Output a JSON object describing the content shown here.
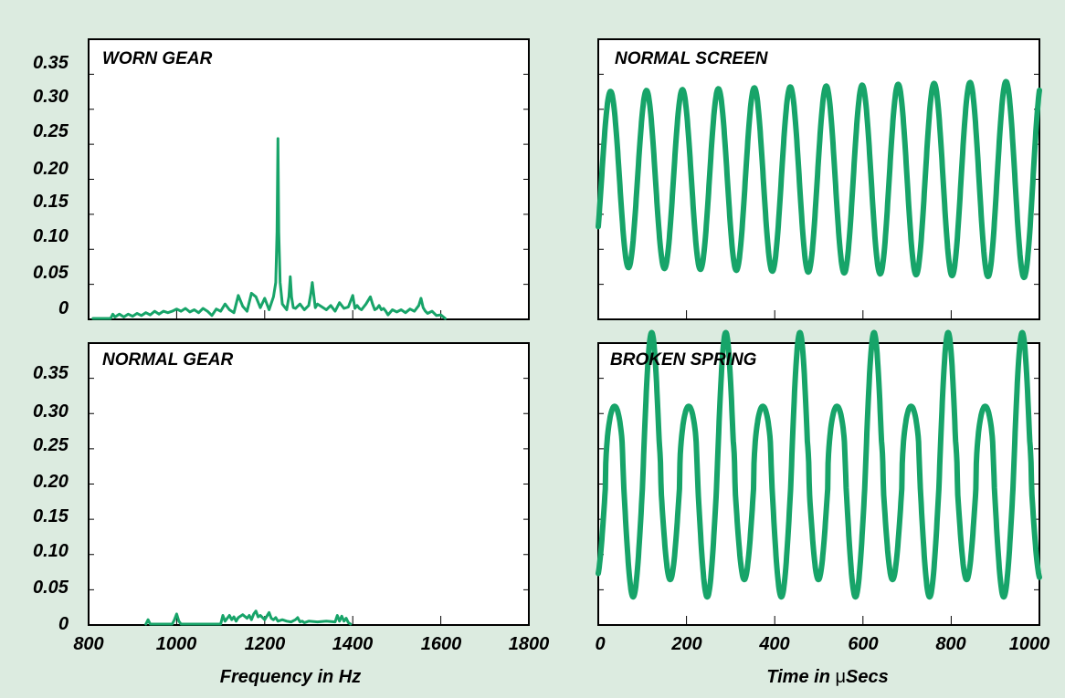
{
  "colors": {
    "background": "#dcebe0",
    "panel": "#ffffff",
    "trace": "#17a469",
    "frame": "#000000"
  },
  "y_tick_labels": [
    "0.35",
    "0.30",
    "0.25",
    "0.20",
    "0.15",
    "0.10",
    "0.05",
    "0"
  ],
  "x_axes": {
    "frequency": {
      "label": "Frequency in Hz",
      "ticks": [
        "800",
        "1000",
        "1200",
        "1400",
        "1600",
        "1800"
      ],
      "range": [
        800,
        1800
      ]
    },
    "time": {
      "label_prefix": "Time in ",
      "label_mu": "μ",
      "label_suffix": "Secs",
      "ticks": [
        "0",
        "200",
        "400",
        "600",
        "800",
        "1000"
      ],
      "range": [
        0,
        1000
      ]
    }
  },
  "chart_data": [
    {
      "id": "worn-gear",
      "type": "line",
      "title": "WORN GEAR",
      "xlabel": "Frequency in Hz",
      "xlim": [
        800,
        1800
      ],
      "ylim": [
        0,
        0.35
      ],
      "x": [
        810,
        840,
        850,
        855,
        860,
        870,
        880,
        890,
        900,
        910,
        920,
        930,
        940,
        950,
        960,
        970,
        980,
        990,
        1000,
        1010,
        1020,
        1030,
        1040,
        1050,
        1060,
        1070,
        1080,
        1090,
        1100,
        1110,
        1120,
        1130,
        1140,
        1150,
        1160,
        1170,
        1180,
        1190,
        1200,
        1210,
        1220,
        1225,
        1228,
        1230,
        1232,
        1235,
        1240,
        1250,
        1255,
        1258,
        1261,
        1265,
        1270,
        1280,
        1290,
        1300,
        1305,
        1308,
        1311,
        1315,
        1320,
        1330,
        1340,
        1350,
        1360,
        1370,
        1380,
        1390,
        1400,
        1405,
        1410,
        1415,
        1420,
        1430,
        1440,
        1445,
        1450,
        1455,
        1460,
        1465,
        1470,
        1475,
        1480,
        1490,
        1500,
        1510,
        1520,
        1530,
        1540,
        1550,
        1555,
        1560,
        1565,
        1570,
        1580,
        1590,
        1600,
        1610
      ],
      "y": [
        0,
        0,
        0,
        0.006,
        0.002,
        0.006,
        0.002,
        0.006,
        0.003,
        0.007,
        0.004,
        0.008,
        0.005,
        0.01,
        0.006,
        0.01,
        0.008,
        0.01,
        0.013,
        0.01,
        0.014,
        0.009,
        0.012,
        0.008,
        0.014,
        0.01,
        0.004,
        0.013,
        0.01,
        0.02,
        0.012,
        0.008,
        0.032,
        0.017,
        0.01,
        0.035,
        0.03,
        0.015,
        0.028,
        0.012,
        0.03,
        0.05,
        0.12,
        0.25,
        0.12,
        0.05,
        0.02,
        0.012,
        0.03,
        0.058,
        0.03,
        0.015,
        0.014,
        0.02,
        0.012,
        0.018,
        0.035,
        0.05,
        0.035,
        0.015,
        0.02,
        0.016,
        0.012,
        0.018,
        0.01,
        0.022,
        0.014,
        0.016,
        0.032,
        0.014,
        0.018,
        0.014,
        0.012,
        0.02,
        0.03,
        0.02,
        0.012,
        0.014,
        0.018,
        0.012,
        0.014,
        0.01,
        0.005,
        0.012,
        0.009,
        0.012,
        0.008,
        0.013,
        0.01,
        0.018,
        0.028,
        0.015,
        0.01,
        0.007,
        0.01,
        0.004,
        0.005,
        0
      ]
    },
    {
      "id": "normal-gear",
      "type": "line",
      "title": "NORMAL GEAR",
      "xlabel": "Frequency in Hz",
      "xlim": [
        800,
        1800
      ],
      "ylim": [
        0,
        0.35
      ],
      "x": [
        930,
        935,
        940,
        945,
        990,
        995,
        1000,
        1005,
        1010,
        1100,
        1105,
        1110,
        1115,
        1120,
        1125,
        1130,
        1135,
        1140,
        1150,
        1160,
        1165,
        1170,
        1175,
        1180,
        1185,
        1190,
        1200,
        1210,
        1215,
        1220,
        1225,
        1230,
        1240,
        1250,
        1260,
        1270,
        1275,
        1280,
        1285,
        1290,
        1300,
        1320,
        1340,
        1360,
        1365,
        1370,
        1375,
        1380,
        1385,
        1390,
        1395
      ],
      "y": [
        0,
        0.006,
        0,
        0,
        0,
        0.006,
        0.014,
        0.004,
        0,
        0,
        0.012,
        0.004,
        0.008,
        0.012,
        0.006,
        0.01,
        0.004,
        0.009,
        0.013,
        0.008,
        0.012,
        0.006,
        0.014,
        0.018,
        0.01,
        0.012,
        0.006,
        0.016,
        0.008,
        0.006,
        0.009,
        0.004,
        0.006,
        0.004,
        0.003,
        0.006,
        0.009,
        0.003,
        0.004,
        0.002,
        0.004,
        0.003,
        0.004,
        0.003,
        0.012,
        0.004,
        0.011,
        0.004,
        0.008,
        0.002,
        0
      ]
    },
    {
      "id": "normal-screen",
      "type": "line",
      "title": "NORMAL SCREEN",
      "xlabel": "Time in μSecs",
      "xlim": [
        0,
        1000
      ],
      "waveform": {
        "period_us": 81.5,
        "offset": 0.17,
        "amplitude": 0.12,
        "amplitude_gain": 0.015,
        "harmonic_phase": 0.9
      }
    },
    {
      "id": "broken-spring",
      "type": "line",
      "title": "BROKEN SPRING",
      "xlabel": "Time in μSecs",
      "xlim": [
        0,
        1000
      ],
      "waveform": {
        "period_us": 84,
        "offset": 0.2,
        "base_amplitude": 0.1,
        "spike_amplitude": 0.2,
        "spike_every": 2,
        "plateau_harmonic": 0.3
      }
    }
  ]
}
